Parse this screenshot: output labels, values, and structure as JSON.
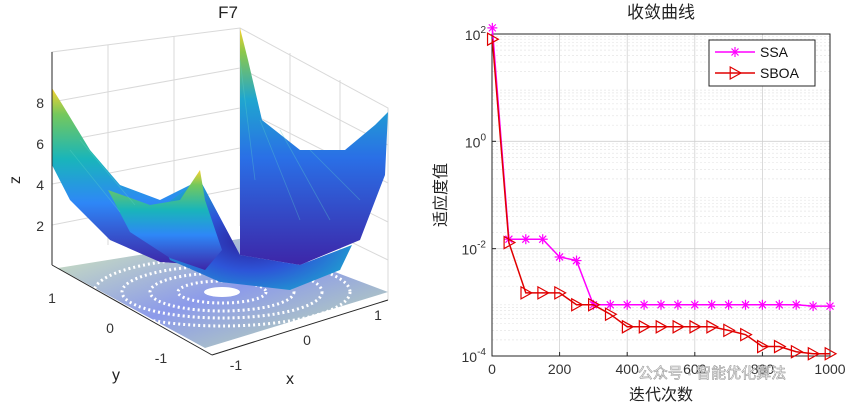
{
  "chart_data": [
    {
      "type": "surface",
      "title": "F7",
      "xlabel": "x",
      "ylabel": "y",
      "zlabel": "z",
      "x_ticks": [
        "-1",
        "0",
        "1"
      ],
      "y_ticks": [
        "1",
        "0",
        "-1"
      ],
      "z_ticks": [
        "2",
        "4",
        "6",
        "8"
      ],
      "zlim": [
        0,
        9
      ],
      "colormap": [
        "#3d26a8",
        "#2e87f7",
        "#19b5ba",
        "#74c85d",
        "#f9d22e"
      ]
    },
    {
      "type": "line",
      "title": "收敛曲线",
      "xlabel": "迭代次数",
      "ylabel": "适应度值",
      "yscale": "log",
      "xlim": [
        0,
        1000
      ],
      "ylim": [
        0.0001,
        100
      ],
      "x_ticks": [
        "0",
        "200",
        "400",
        "600",
        "800",
        "1000"
      ],
      "y_ticks": [
        {
          "base": "10",
          "exp": "2",
          "value": 100
        },
        {
          "base": "10",
          "exp": "0",
          "value": 1
        },
        {
          "base": "10",
          "exp": "-2",
          "value": 0.01
        },
        {
          "base": "10",
          "exp": "-4",
          "value": 0.0001
        }
      ],
      "grid": true,
      "legend_position": "top-right",
      "series": [
        {
          "name": "SSA",
          "color": "#ff00ff",
          "marker": "asterisk",
          "x": [
            1,
            50,
            100,
            150,
            200,
            250,
            300,
            350,
            400,
            450,
            500,
            550,
            600,
            650,
            700,
            750,
            800,
            850,
            900,
            950,
            1000
          ],
          "y": [
            130,
            0.015,
            0.015,
            0.015,
            0.007,
            0.006,
            0.0009,
            0.0009,
            0.0009,
            0.0009,
            0.0009,
            0.0009,
            0.0009,
            0.0009,
            0.0009,
            0.0009,
            0.0009,
            0.0009,
            0.0009,
            0.00085,
            0.00085
          ]
        },
        {
          "name": "SBOA",
          "color": "#e00000",
          "marker": "triangle-right",
          "x": [
            1,
            50,
            100,
            150,
            200,
            250,
            300,
            350,
            400,
            450,
            500,
            550,
            600,
            650,
            700,
            750,
            800,
            850,
            900,
            950,
            1000
          ],
          "y": [
            80,
            0.013,
            0.0015,
            0.0015,
            0.0015,
            0.0009,
            0.0009,
            0.0006,
            0.00035,
            0.00035,
            0.00035,
            0.00035,
            0.00035,
            0.00035,
            0.0003,
            0.00025,
            0.00015,
            0.00015,
            0.00012,
            0.00011,
            0.00011
          ]
        }
      ]
    }
  ],
  "watermark": "公众号 · 智能优化算法"
}
